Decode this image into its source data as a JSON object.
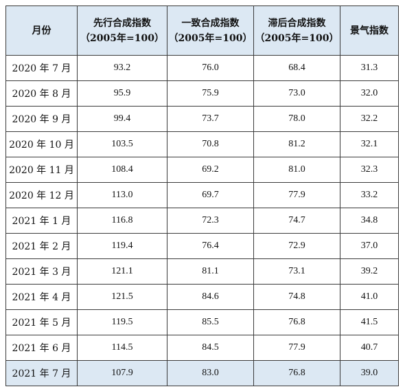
{
  "table": {
    "headers": [
      {
        "line1": "月份",
        "line2": ""
      },
      {
        "line1": "先行合成指数",
        "line2": "（2005年=100）"
      },
      {
        "line1": "一致合成指数",
        "line2": "（2005年=100）"
      },
      {
        "line1": "滞后合成指数",
        "line2": "（2005年=100）"
      },
      {
        "line1": "景气指数",
        "line2": ""
      }
    ],
    "rows": [
      {
        "month": "2020 年 7 月",
        "leading": "93.2",
        "coincident": "76.0",
        "lagging": "68.4",
        "climate": "31.3"
      },
      {
        "month": "2020 年 8 月",
        "leading": "95.9",
        "coincident": "75.9",
        "lagging": "73.0",
        "climate": "32.0"
      },
      {
        "month": "2020 年 9 月",
        "leading": "99.4",
        "coincident": "73.7",
        "lagging": "78.0",
        "climate": "32.2"
      },
      {
        "month": "2020 年 10 月",
        "leading": "103.5",
        "coincident": "70.8",
        "lagging": "81.2",
        "climate": "32.1"
      },
      {
        "month": "2020 年 11 月",
        "leading": "108.4",
        "coincident": "69.2",
        "lagging": "81.0",
        "climate": "32.3"
      },
      {
        "month": "2020 年 12 月",
        "leading": "113.0",
        "coincident": "69.7",
        "lagging": "77.9",
        "climate": "33.2"
      },
      {
        "month": "2021 年 1 月",
        "leading": "116.8",
        "coincident": "72.3",
        "lagging": "74.7",
        "climate": "34.8"
      },
      {
        "month": "2021 年 2 月",
        "leading": "119.4",
        "coincident": "76.4",
        "lagging": "72.9",
        "climate": "37.0"
      },
      {
        "month": "2021 年 3 月",
        "leading": "121.1",
        "coincident": "81.1",
        "lagging": "73.1",
        "climate": "39.2"
      },
      {
        "month": "2021 年 4 月",
        "leading": "121.5",
        "coincident": "84.6",
        "lagging": "74.8",
        "climate": "41.0"
      },
      {
        "month": "2021 年 5 月",
        "leading": "119.5",
        "coincident": "85.5",
        "lagging": "76.8",
        "climate": "41.5"
      },
      {
        "month": "2021 年 6 月",
        "leading": "114.5",
        "coincident": "84.5",
        "lagging": "77.9",
        "climate": "40.7"
      },
      {
        "month": "2021 年 7 月",
        "leading": "107.9",
        "coincident": "83.0",
        "lagging": "76.8",
        "climate": "39.0"
      }
    ]
  },
  "colors": {
    "header_bg": "#dce8f3",
    "highlight_row_bg": "#dce8f3",
    "border": "#3a3a3a"
  }
}
